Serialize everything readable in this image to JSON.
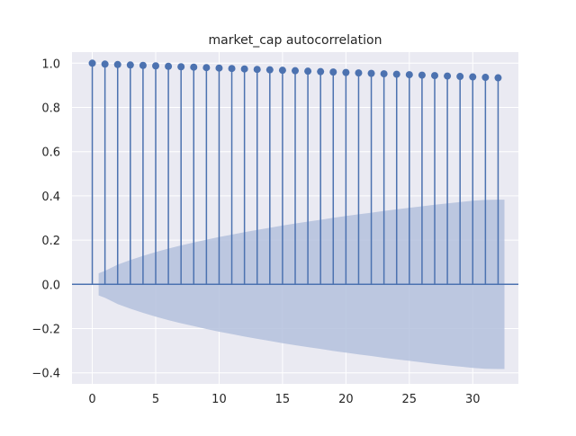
{
  "chart_data": {
    "type": "stem",
    "title": "market_cap autocorrelation",
    "xlabel": "",
    "ylabel": "",
    "xlim": [
      -1.6,
      33.6
    ],
    "ylim": [
      -0.45,
      1.05
    ],
    "x_ticks": [
      0,
      5,
      10,
      15,
      20,
      25,
      30
    ],
    "x_tick_labels": [
      "0",
      "5",
      "10",
      "15",
      "20",
      "25",
      "30"
    ],
    "y_ticks": [
      -0.4,
      -0.2,
      0.0,
      0.2,
      0.4,
      0.6,
      0.8,
      1.0
    ],
    "y_tick_labels": [
      "−0.4",
      "−0.2",
      "0.0",
      "0.2",
      "0.4",
      "0.6",
      "0.8",
      "1.0"
    ],
    "grid": true,
    "colors": {
      "background": "#eaeaf2",
      "grid": "#ffffff",
      "stem": "#4c72b0",
      "band": "#b4c1dd"
    },
    "lags": [
      0,
      1,
      2,
      3,
      4,
      5,
      6,
      7,
      8,
      9,
      10,
      11,
      12,
      13,
      14,
      15,
      16,
      17,
      18,
      19,
      20,
      21,
      22,
      23,
      24,
      25,
      26,
      27,
      28,
      29,
      30,
      31,
      32
    ],
    "acf": [
      1.0,
      0.996,
      0.994,
      0.992,
      0.99,
      0.988,
      0.986,
      0.984,
      0.982,
      0.98,
      0.978,
      0.976,
      0.974,
      0.972,
      0.97,
      0.968,
      0.966,
      0.964,
      0.962,
      0.96,
      0.958,
      0.956,
      0.954,
      0.952,
      0.95,
      0.948,
      0.946,
      0.944,
      0.942,
      0.94,
      0.938,
      0.936,
      0.934
    ],
    "confidence_band": {
      "x": [
        0.5,
        1,
        2,
        3,
        4,
        5,
        6,
        7,
        8,
        9,
        10,
        11,
        12,
        13,
        14,
        15,
        16,
        17,
        18,
        19,
        20,
        21,
        22,
        23,
        24,
        25,
        26,
        27,
        28,
        29,
        30,
        31,
        32,
        32.5
      ],
      "upper": [
        0.05,
        0.061,
        0.089,
        0.11,
        0.129,
        0.146,
        0.162,
        0.176,
        0.189,
        0.202,
        0.214,
        0.225,
        0.236,
        0.246,
        0.256,
        0.266,
        0.275,
        0.284,
        0.292,
        0.301,
        0.309,
        0.317,
        0.324,
        0.332,
        0.339,
        0.346,
        0.353,
        0.36,
        0.366,
        0.372,
        0.378,
        0.382,
        0.383,
        0.383
      ]
    }
  }
}
